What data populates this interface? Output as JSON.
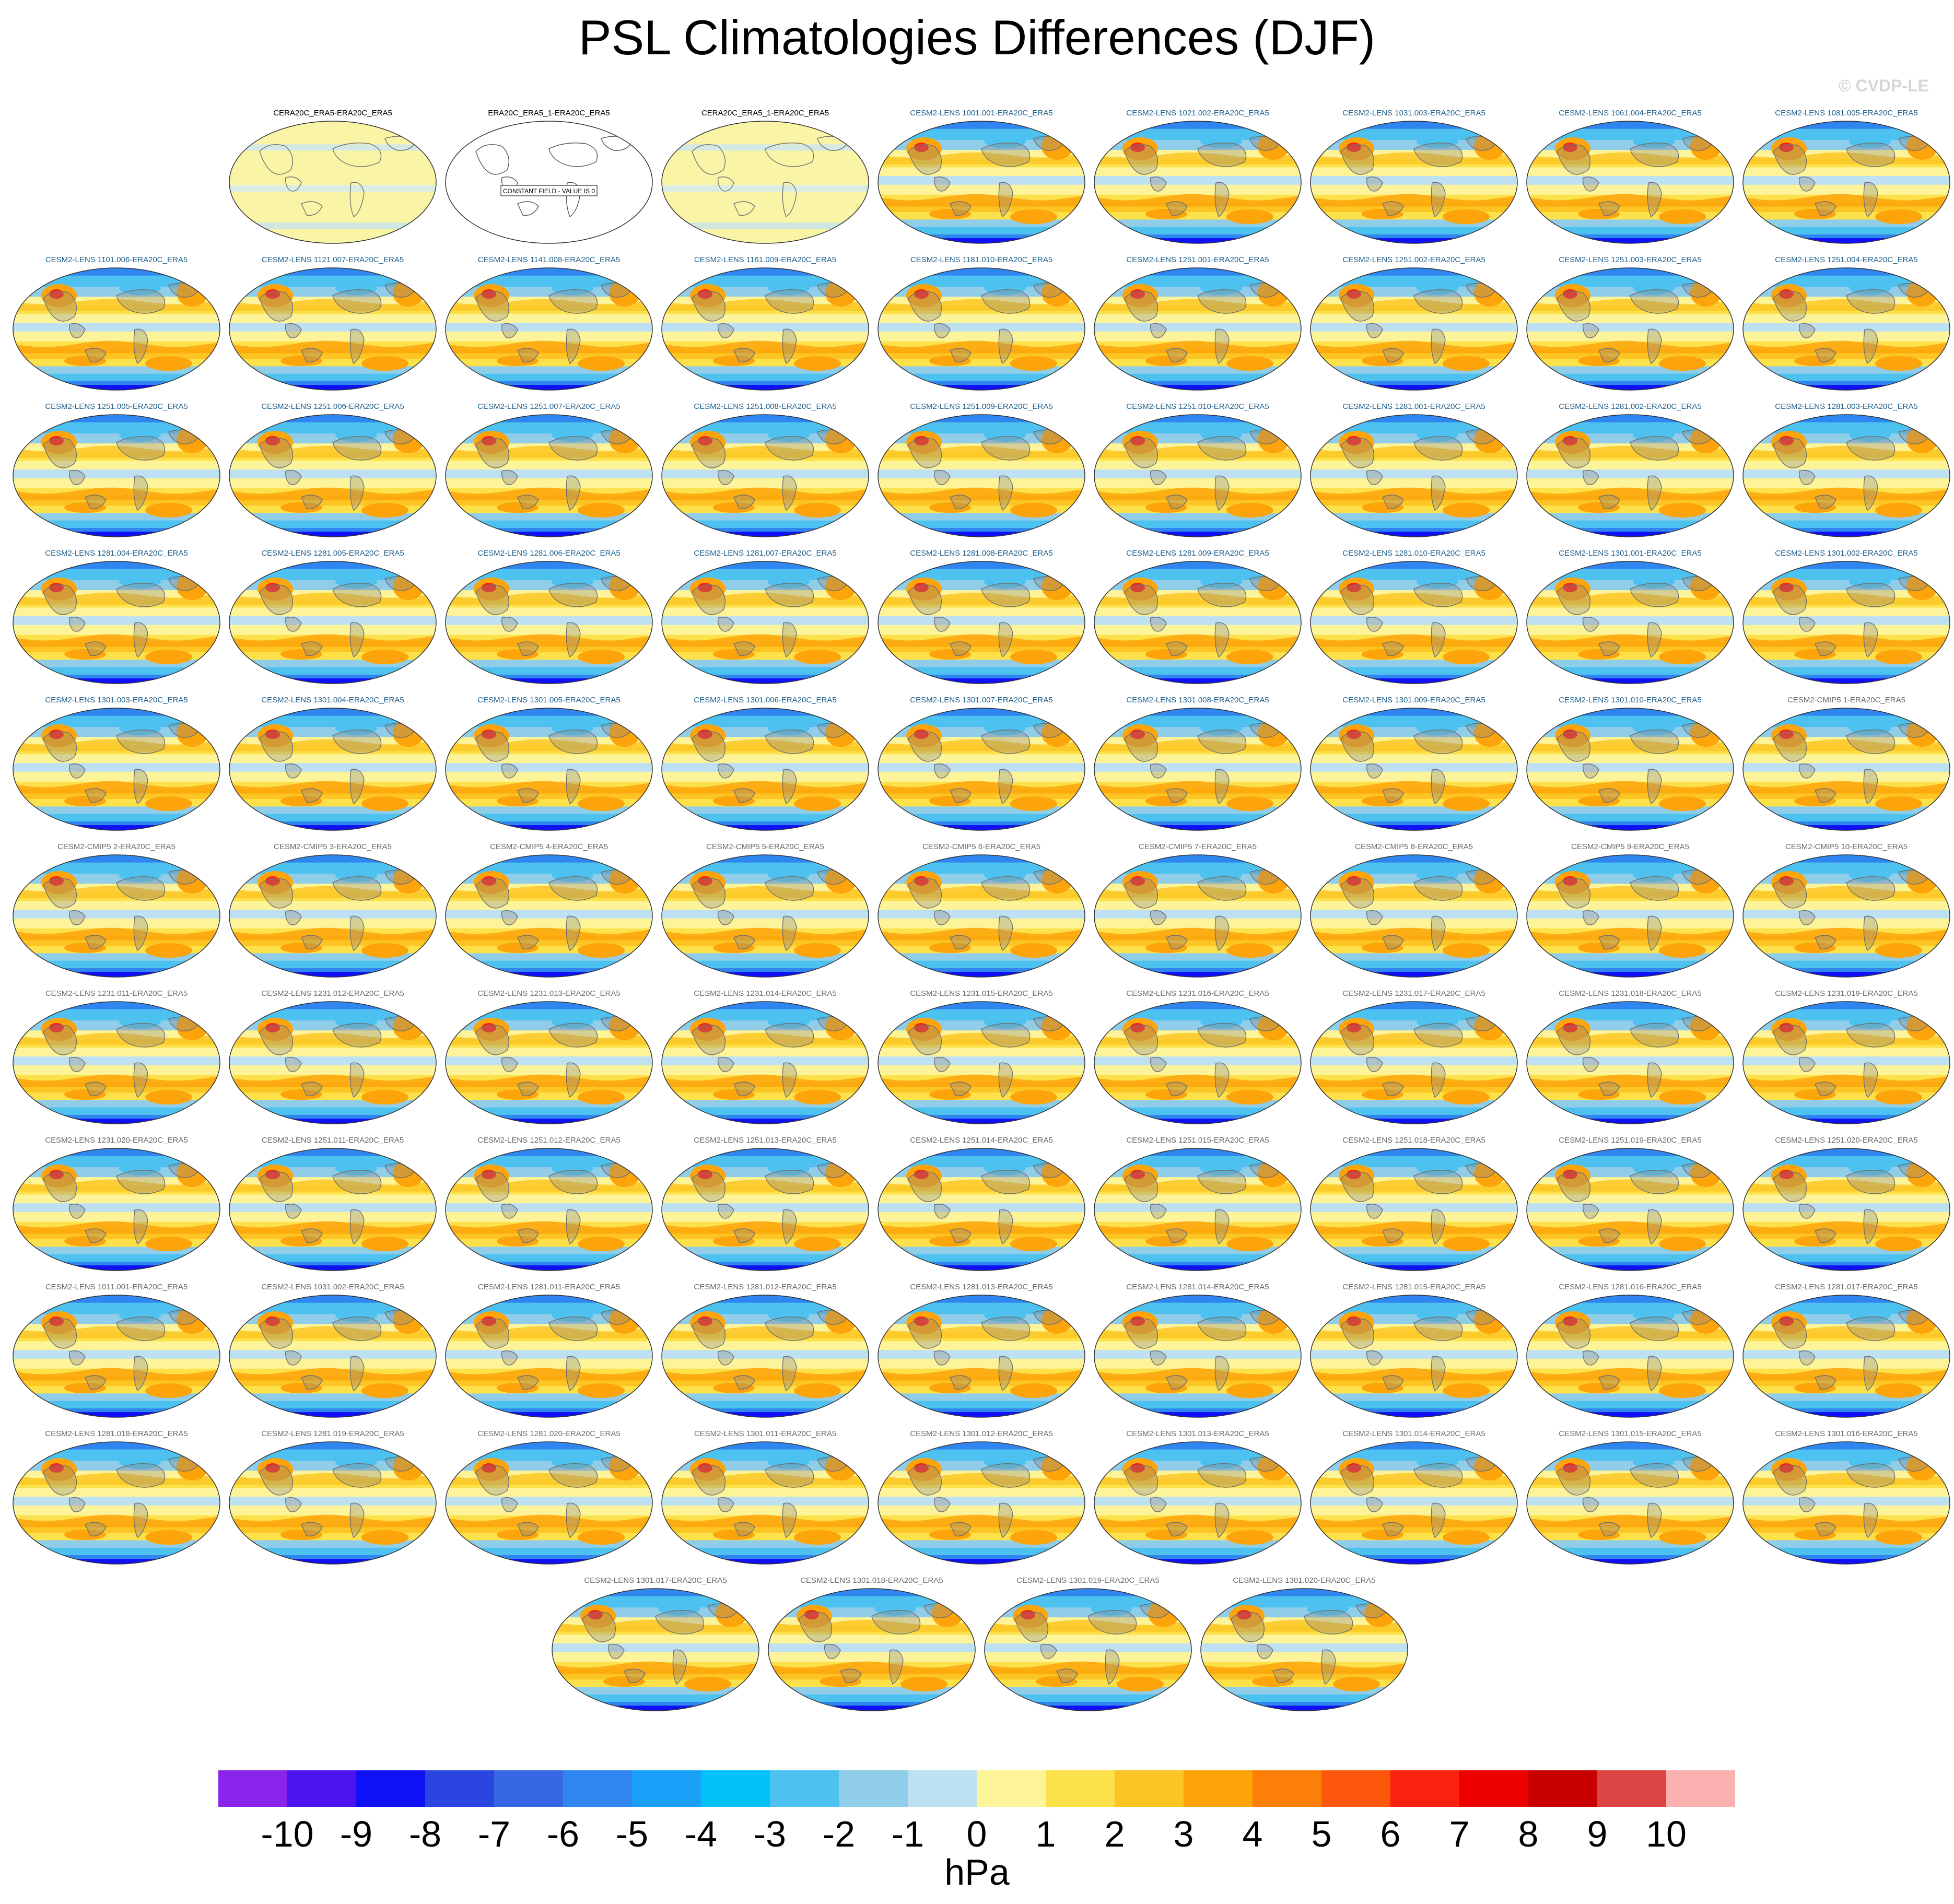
{
  "title": "PSL Climatologies Differences (DJF)",
  "copyright": "© CVDP-LE",
  "colorbar": {
    "units": "hPa",
    "labels": [
      "-10",
      "-9",
      "-8",
      "-7",
      "-6",
      "-5",
      "-4",
      "-3",
      "-2",
      "-1",
      "0",
      "1",
      "2",
      "3",
      "4",
      "5",
      "6",
      "7",
      "8",
      "9",
      "10"
    ],
    "colors": [
      "#8a24ea",
      "#4c12f0",
      "#1010f7",
      "#2a45e0",
      "#3568e2",
      "#2f86f0",
      "#1aa0f8",
      "#00c1f8",
      "#4dc2f0",
      "#90cde8",
      "#bde0f2",
      "#fdf49a",
      "#fde14b",
      "#fcc523",
      "#fca40a",
      "#fc7f0a",
      "#fc570a",
      "#fc220f",
      "#ec0000",
      "#c80000",
      "#dc4444",
      "#fcb1b1"
    ]
  },
  "panels": [
    {
      "title": "CERA20C_ERA5-ERA20C_ERA5",
      "style": "ref"
    },
    {
      "title": "ERA20C_ERA5_1-ERA20C_ERA5",
      "style": "ref",
      "label": "CONSTANT FIELD - VALUE IS 0"
    },
    {
      "title": "CERA20C_ERA5_1-ERA20C_ERA5",
      "style": "ref"
    },
    {
      "title": "CESM2-LENS 1001.001-ERA20C_ERA5",
      "style": "lens"
    },
    {
      "title": "CESM2-LENS 1021.002-ERA20C_ERA5",
      "style": "lens"
    },
    {
      "title": "CESM2-LENS 1031.003-ERA20C_ERA5",
      "style": "lens"
    },
    {
      "title": "CESM2-LENS 1061.004-ERA20C_ERA5",
      "style": "lens"
    },
    {
      "title": "CESM2-LENS 1081.005-ERA20C_ERA5",
      "style": "lens"
    },
    {
      "title": "CESM2-LENS 1101.006-ERA20C_ERA5",
      "style": "lens"
    },
    {
      "title": "CESM2-LENS 1121.007-ERA20C_ERA5",
      "style": "lens"
    },
    {
      "title": "CESM2-LENS 1141.008-ERA20C_ERA5",
      "style": "lens"
    },
    {
      "title": "CESM2-LENS 1161.009-ERA20C_ERA5",
      "style": "lens"
    },
    {
      "title": "CESM2-LENS 1181.010-ERA20C_ERA5",
      "style": "lens"
    },
    {
      "title": "CESM2-LENS 1251.001-ERA20C_ERA5",
      "style": "lens"
    },
    {
      "title": "CESM2-LENS 1251.002-ERA20C_ERA5",
      "style": "lens"
    },
    {
      "title": "CESM2-LENS 1251.003-ERA20C_ERA5",
      "style": "lens"
    },
    {
      "title": "CESM2-LENS 1251.004-ERA20C_ERA5",
      "style": "lens"
    },
    {
      "title": "CESM2-LENS 1251.005-ERA20C_ERA5",
      "style": "lens"
    },
    {
      "title": "CESM2-LENS 1251.006-ERA20C_ERA5",
      "style": "lens"
    },
    {
      "title": "CESM2-LENS 1251.007-ERA20C_ERA5",
      "style": "lens"
    },
    {
      "title": "CESM2-LENS 1251.008-ERA20C_ERA5",
      "style": "lens"
    },
    {
      "title": "CESM2-LENS 1251.009-ERA20C_ERA5",
      "style": "lens"
    },
    {
      "title": "CESM2-LENS 1251.010-ERA20C_ERA5",
      "style": "lens"
    },
    {
      "title": "CESM2-LENS 1281.001-ERA20C_ERA5",
      "style": "lens"
    },
    {
      "title": "CESM2-LENS 1281.002-ERA20C_ERA5",
      "style": "lens"
    },
    {
      "title": "CESM2-LENS 1281.003-ERA20C_ERA5",
      "style": "lens"
    },
    {
      "title": "CESM2-LENS 1281.004-ERA20C_ERA5",
      "style": "lens"
    },
    {
      "title": "CESM2-LENS 1281.005-ERA20C_ERA5",
      "style": "lens"
    },
    {
      "title": "CESM2-LENS 1281.006-ERA20C_ERA5",
      "style": "lens"
    },
    {
      "title": "CESM2-LENS 1281.007-ERA20C_ERA5",
      "style": "lens"
    },
    {
      "title": "CESM2-LENS 1281.008-ERA20C_ERA5",
      "style": "lens"
    },
    {
      "title": "CESM2-LENS 1281.009-ERA20C_ERA5",
      "style": "lens"
    },
    {
      "title": "CESM2-LENS 1281.010-ERA20C_ERA5",
      "style": "lens"
    },
    {
      "title": "CESM2-LENS 1301.001-ERA20C_ERA5",
      "style": "lens"
    },
    {
      "title": "CESM2-LENS 1301.002-ERA20C_ERA5",
      "style": "lens"
    },
    {
      "title": "CESM2-LENS 1301.003-ERA20C_ERA5",
      "style": "lens"
    },
    {
      "title": "CESM2-LENS 1301.004-ERA20C_ERA5",
      "style": "lens"
    },
    {
      "title": "CESM2-LENS 1301.005-ERA20C_ERA5",
      "style": "lens"
    },
    {
      "title": "CESM2-LENS 1301.006-ERA20C_ERA5",
      "style": "lens"
    },
    {
      "title": "CESM2-LENS 1301.007-ERA20C_ERA5",
      "style": "lens"
    },
    {
      "title": "CESM2-LENS 1301.008-ERA20C_ERA5",
      "style": "lens"
    },
    {
      "title": "CESM2-LENS 1301.009-ERA20C_ERA5",
      "style": "lens"
    },
    {
      "title": "CESM2-LENS 1301.010-ERA20C_ERA5",
      "style": "lens"
    },
    {
      "title": "CESM2-CMIP5 1-ERA20C_ERA5",
      "style": "grey"
    },
    {
      "title": "CESM2-CMIP5 2-ERA20C_ERA5",
      "style": "grey"
    },
    {
      "title": "CESM2-CMIP5 3-ERA20C_ERA5",
      "style": "grey"
    },
    {
      "title": "CESM2-CMIP5 4-ERA20C_ERA5",
      "style": "grey"
    },
    {
      "title": "CESM2-CMIP5 5-ERA20C_ERA5",
      "style": "grey"
    },
    {
      "title": "CESM2-CMIP5 6-ERA20C_ERA5",
      "style": "grey"
    },
    {
      "title": "CESM2-CMIP5 7-ERA20C_ERA5",
      "style": "grey"
    },
    {
      "title": "CESM2-CMIP5 8-ERA20C_ERA5",
      "style": "grey"
    },
    {
      "title": "CESM2-CMIP5 9-ERA20C_ERA5",
      "style": "grey"
    },
    {
      "title": "CESM2-CMIP5 10-ERA20C_ERA5",
      "style": "grey"
    },
    {
      "title": "CESM2-LENS 1231.011-ERA20C_ERA5",
      "style": "grey"
    },
    {
      "title": "CESM2-LENS 1231.012-ERA20C_ERA5",
      "style": "grey"
    },
    {
      "title": "CESM2-LENS 1231.013-ERA20C_ERA5",
      "style": "grey"
    },
    {
      "title": "CESM2-LENS 1231.014-ERA20C_ERA5",
      "style": "grey"
    },
    {
      "title": "CESM2-LENS 1231.015-ERA20C_ERA5",
      "style": "grey"
    },
    {
      "title": "CESM2-LENS 1231.016-ERA20C_ERA5",
      "style": "grey"
    },
    {
      "title": "CESM2-LENS 1231.017-ERA20C_ERA5",
      "style": "grey"
    },
    {
      "title": "CESM2-LENS 1231.018-ERA20C_ERA5",
      "style": "grey"
    },
    {
      "title": "CESM2-LENS 1231.019-ERA20C_ERA5",
      "style": "grey"
    },
    {
      "title": "CESM2-LENS 1231.020-ERA20C_ERA5",
      "style": "grey"
    },
    {
      "title": "CESM2-LENS 1251.011-ERA20C_ERA5",
      "style": "grey"
    },
    {
      "title": "CESM2-LENS 1251.012-ERA20C_ERA5",
      "style": "grey"
    },
    {
      "title": "CESM2-LENS 1251.013-ERA20C_ERA5",
      "style": "grey"
    },
    {
      "title": "CESM2-LENS 1251.014-ERA20C_ERA5",
      "style": "grey"
    },
    {
      "title": "CESM2-LENS 1251.015-ERA20C_ERA5",
      "style": "grey"
    },
    {
      "title": "CESM2-LENS 1251.018-ERA20C_ERA5",
      "style": "grey"
    },
    {
      "title": "CESM2-LENS 1251.019-ERA20C_ERA5",
      "style": "grey"
    },
    {
      "title": "CESM2-LENS 1251.020-ERA20C_ERA5",
      "style": "grey"
    },
    {
      "title": "CESM2-LENS 1011.001-ERA20C_ERA5",
      "style": "grey"
    },
    {
      "title": "CESM2-LENS 1031.002-ERA20C_ERA5",
      "style": "grey"
    },
    {
      "title": "CESM2-LENS 1281.011-ERA20C_ERA5",
      "style": "grey"
    },
    {
      "title": "CESM2-LENS 1281.012-ERA20C_ERA5",
      "style": "grey"
    },
    {
      "title": "CESM2-LENS 1281.013-ERA20C_ERA5",
      "style": "grey"
    },
    {
      "title": "CESM2-LENS 1281.014-ERA20C_ERA5",
      "style": "grey"
    },
    {
      "title": "CESM2-LENS 1281.015-ERA20C_ERA5",
      "style": "grey"
    },
    {
      "title": "CESM2-LENS 1281.016-ERA20C_ERA5",
      "style": "grey"
    },
    {
      "title": "CESM2-LENS 1281.017-ERA20C_ERA5",
      "style": "grey"
    },
    {
      "title": "CESM2-LENS 1281.018-ERA20C_ERA5",
      "style": "grey"
    },
    {
      "title": "CESM2-LENS 1281.019-ERA20C_ERA5",
      "style": "grey"
    },
    {
      "title": "CESM2-LENS 1281.020-ERA20C_ERA5",
      "style": "grey"
    },
    {
      "title": "CESM2-LENS 1301.011-ERA20C_ERA5",
      "style": "grey"
    },
    {
      "title": "CESM2-LENS 1301.012-ERA20C_ERA5",
      "style": "grey"
    },
    {
      "title": "CESM2-LENS 1301.013-ERA20C_ERA5",
      "style": "grey"
    },
    {
      "title": "CESM2-LENS 1301.014-ERA20C_ERA5",
      "style": "grey"
    },
    {
      "title": "CESM2-LENS 1301.015-ERA20C_ERA5",
      "style": "grey"
    },
    {
      "title": "CESM2-LENS 1301.016-ERA20C_ERA5",
      "style": "grey"
    },
    {
      "title": "CESM2-LENS 1301.017-ERA20C_ERA5",
      "style": "grey"
    },
    {
      "title": "CESM2-LENS 1301.018-ERA20C_ERA5",
      "style": "grey"
    },
    {
      "title": "CESM2-LENS 1301.019-ERA20C_ERA5",
      "style": "grey"
    },
    {
      "title": "CESM2-LENS 1301.020-ERA20C_ERA5",
      "style": "grey"
    }
  ]
}
